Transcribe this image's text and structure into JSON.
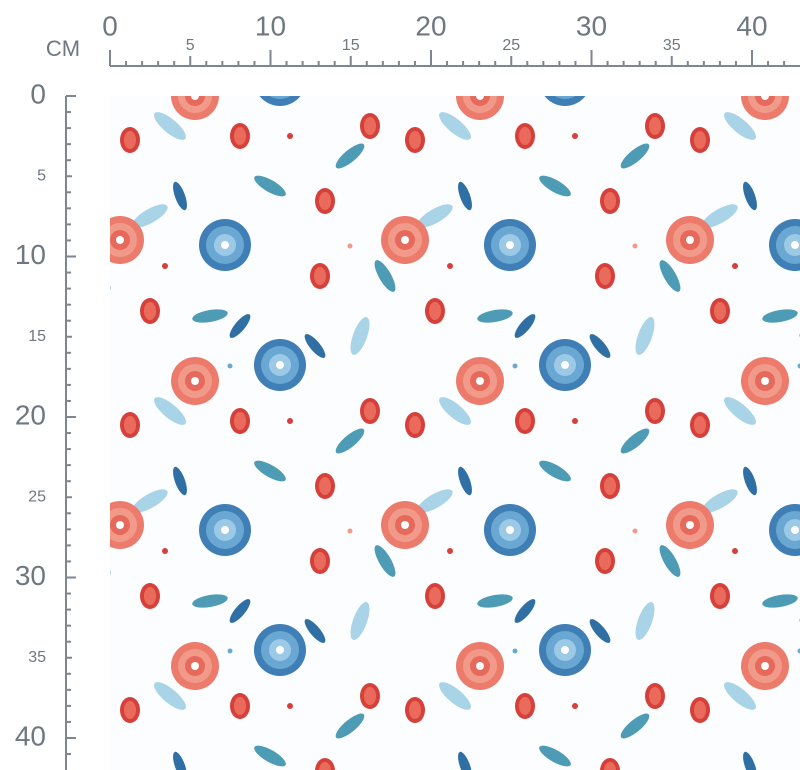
{
  "top_ruler": {
    "unit": "CM",
    "labels": [
      0,
      5,
      10,
      15,
      20,
      25,
      30,
      35,
      40
    ]
  },
  "left_ruler": {
    "labels": [
      0,
      5,
      10,
      15,
      20,
      25,
      30,
      35,
      40
    ]
  }
}
